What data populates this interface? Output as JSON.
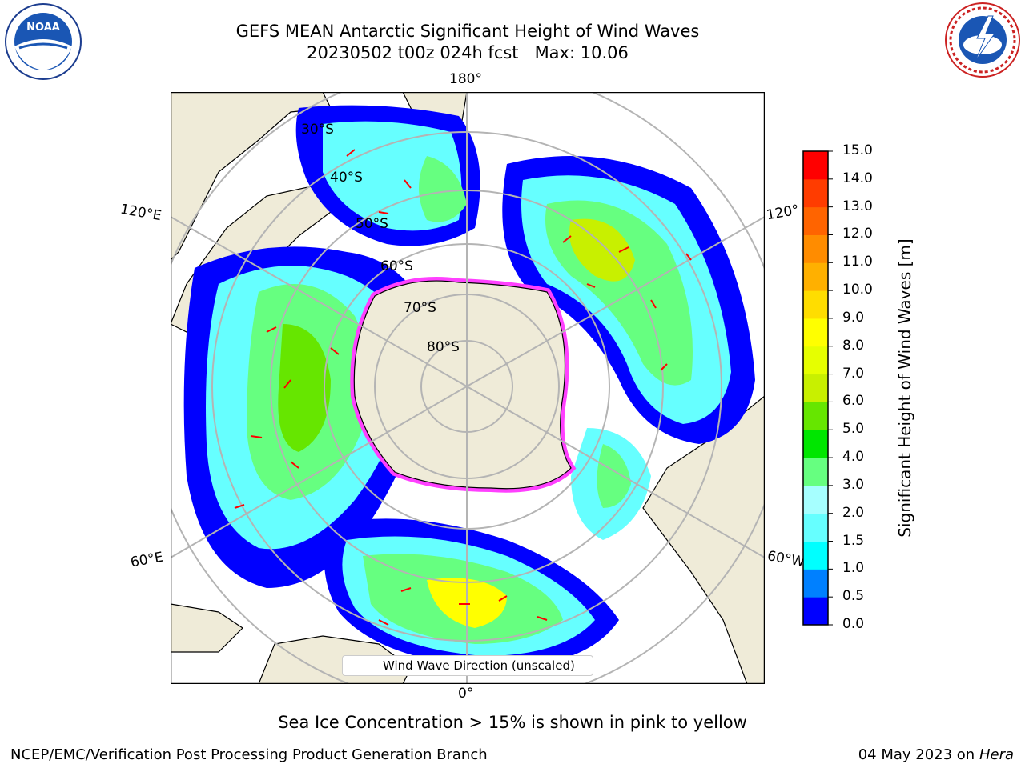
{
  "title": {
    "line1": "GEFS MEAN Antarctic Significant Height of Wind Waves",
    "line2": "20230502 t00z 024h fcst   Max: 10.06"
  },
  "logos": {
    "left": "NOAA",
    "right": "NWS"
  },
  "map": {
    "projection": "south-polar-stereographic",
    "lon_labels": [
      "180°",
      "120°E",
      "120°",
      "60°E",
      "60°W",
      "0°"
    ],
    "lat_labels": [
      "30°S",
      "40°S",
      "50°S",
      "60°S",
      "70°S",
      "80°S"
    ],
    "colors": {
      "land": "#efebd8",
      "ocean": "#ffffff",
      "grid": "#b4b4b4",
      "arrows": "#ff0000",
      "ice": "#ff40ff"
    },
    "legend": "Wind Wave Direction (unscaled)"
  },
  "colorbar": {
    "label": "Significant Height of Wind Waves [m]",
    "ticks": [
      "0.0",
      "0.5",
      "1.0",
      "1.5",
      "2.0",
      "3.0",
      "4.0",
      "5.0",
      "6.0",
      "7.0",
      "8.0",
      "9.0",
      "10.0",
      "11.0",
      "12.0",
      "13.0",
      "14.0",
      "15.0"
    ],
    "colors": [
      "#0000ff",
      "#0080ff",
      "#00ffff",
      "#66ffff",
      "#a6ffff",
      "#66ff80",
      "#00e600",
      "#66e600",
      "#c8f000",
      "#e6ff00",
      "#ffff00",
      "#ffdd00",
      "#ffb000",
      "#ff8c00",
      "#ff6400",
      "#ff3c00",
      "#ff0000"
    ]
  },
  "subtitle": "Sea Ice Concentration > 15% is shown in pink to yellow",
  "footer": {
    "credit": "NCEP/EMC/Verification Post Processing Product Generation Branch",
    "date": "04 May 2023 on",
    "machine": "Hera"
  }
}
